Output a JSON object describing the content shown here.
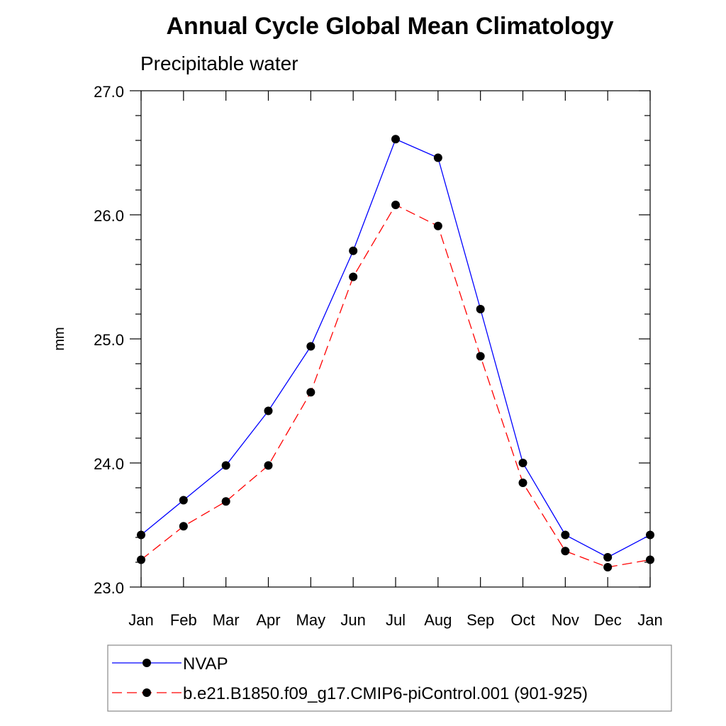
{
  "chart_data": {
    "type": "line",
    "title": "Annual Cycle Global Mean Climatology",
    "subtitle": "Precipitable water",
    "xlabel": "",
    "ylabel": "mm",
    "categories": [
      "Jan",
      "Feb",
      "Mar",
      "Apr",
      "May",
      "Jun",
      "Jul",
      "Aug",
      "Sep",
      "Oct",
      "Nov",
      "Dec",
      "Jan"
    ],
    "ylim": [
      23.0,
      27.0
    ],
    "yticks": [
      23.0,
      24.0,
      25.0,
      26.0,
      27.0
    ],
    "ytick_labels": [
      "23.0",
      "24.0",
      "25.0",
      "26.0",
      "27.0"
    ],
    "legend_position": "bottom",
    "series": [
      {
        "name": "NVAP",
        "color": "#0000ff",
        "style": "solid",
        "marker": "circle",
        "values": [
          23.42,
          23.7,
          23.98,
          24.42,
          24.94,
          25.71,
          26.61,
          26.46,
          25.24,
          24.0,
          23.42,
          23.24,
          23.42
        ]
      },
      {
        "name": "b.e21.B1850.f09_g17.CMIP6-piControl.001 (901-925)",
        "color": "#ff0000",
        "style": "dashed",
        "marker": "circle",
        "values": [
          23.22,
          23.49,
          23.69,
          23.98,
          24.57,
          25.5,
          26.08,
          25.91,
          24.86,
          23.84,
          23.29,
          23.16,
          23.22
        ]
      }
    ]
  }
}
